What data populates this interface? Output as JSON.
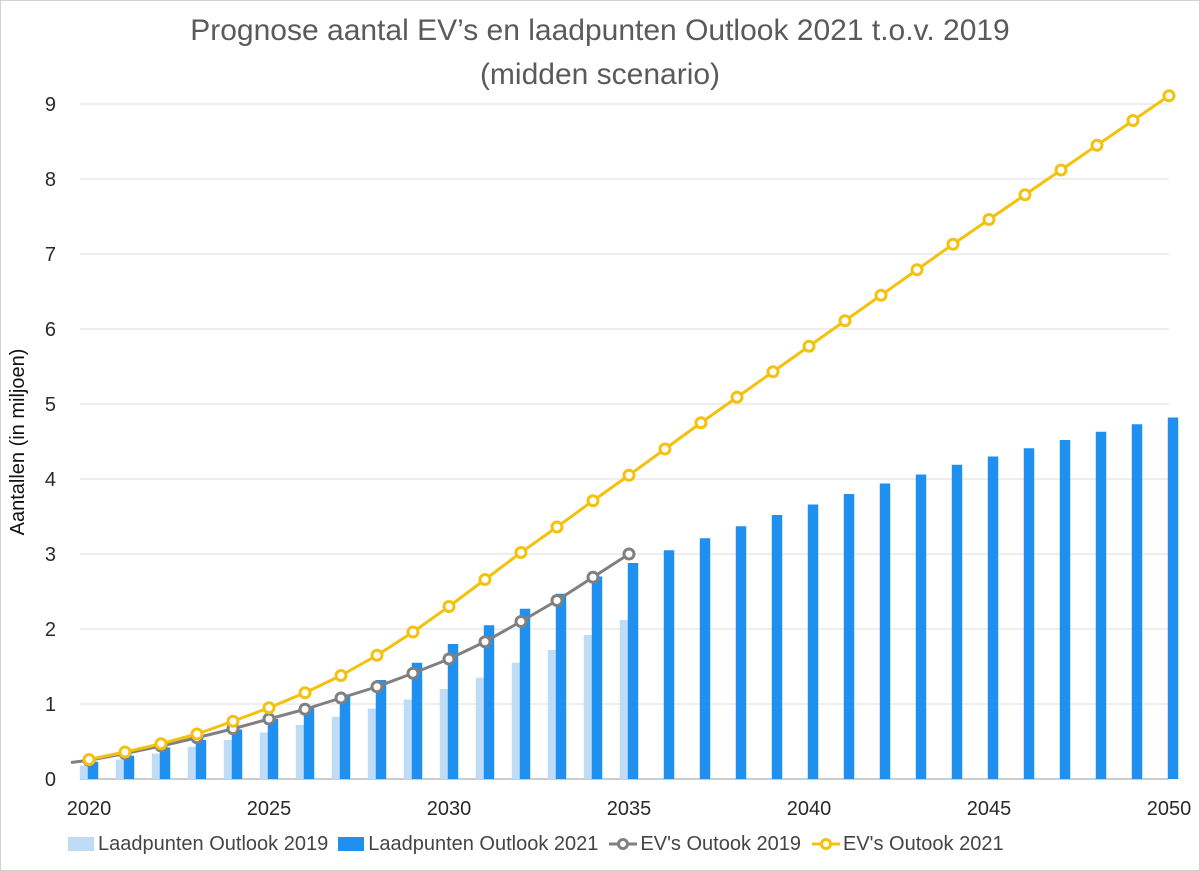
{
  "chart_data": {
    "type": "bar",
    "title": "Prognose aantal EV’s en laadpunten Outlook 2021 t.o.v. 2019",
    "subtitle": "(midden scenario)",
    "xlabel": "",
    "ylabel": "Aantallen (in miljoen)",
    "ylim": [
      0,
      9
    ],
    "yticks": [
      0,
      1,
      2,
      3,
      4,
      5,
      6,
      7,
      8,
      9
    ],
    "xticks": [
      2020,
      2025,
      2030,
      2035,
      2040,
      2045,
      2050
    ],
    "grid": true,
    "legend_position": "bottom",
    "categories": [
      2020,
      2021,
      2022,
      2023,
      2024,
      2025,
      2026,
      2027,
      2028,
      2029,
      2030,
      2031,
      2032,
      2033,
      2034,
      2035,
      2036,
      2037,
      2038,
      2039,
      2040,
      2041,
      2042,
      2043,
      2044,
      2045,
      2046,
      2047,
      2048,
      2049,
      2050
    ],
    "series": [
      {
        "name": "Laadpunten Outlook 2019",
        "kind": "bar",
        "color": "#bfdcf7",
        "x": [
          2020,
          2021,
          2022,
          2023,
          2024,
          2025,
          2026,
          2027,
          2028,
          2029,
          2030,
          2031,
          2032,
          2033,
          2034,
          2035
        ],
        "values": [
          0.18,
          0.26,
          0.34,
          0.43,
          0.52,
          0.62,
          0.72,
          0.83,
          0.94,
          1.06,
          1.2,
          1.35,
          1.55,
          1.72,
          1.92,
          2.12
        ]
      },
      {
        "name": "Laadpunten Outlook 2021",
        "kind": "bar",
        "color": "#1f8ff0",
        "x": [
          2020,
          2021,
          2022,
          2023,
          2024,
          2025,
          2026,
          2027,
          2028,
          2029,
          2030,
          2031,
          2032,
          2033,
          2034,
          2035,
          2036,
          2037,
          2038,
          2039,
          2040,
          2041,
          2042,
          2043,
          2044,
          2045,
          2046,
          2047,
          2048,
          2049,
          2050
        ],
        "values": [
          0.23,
          0.31,
          0.42,
          0.52,
          0.66,
          0.8,
          0.95,
          1.12,
          1.32,
          1.55,
          1.8,
          2.05,
          2.27,
          2.47,
          2.7,
          2.88,
          3.05,
          3.21,
          3.37,
          3.52,
          3.66,
          3.8,
          3.94,
          4.06,
          4.19,
          4.3,
          4.41,
          4.52,
          4.63,
          4.73,
          4.82
        ]
      },
      {
        "name": "EV's Outook 2019",
        "kind": "line",
        "color": "#808080",
        "start": {
          "x": 2019.5,
          "y": 0.22
        },
        "x": [
          2020,
          2021,
          2022,
          2023,
          2024,
          2025,
          2026,
          2027,
          2028,
          2029,
          2030,
          2031,
          2032,
          2033,
          2034,
          2035
        ],
        "values": [
          0.25,
          0.34,
          0.44,
          0.55,
          0.67,
          0.8,
          0.93,
          1.08,
          1.23,
          1.41,
          1.6,
          1.83,
          2.1,
          2.38,
          2.69,
          3.0
        ]
      },
      {
        "name": "EV's Outook 2021",
        "kind": "line",
        "color": "#f4c20d",
        "x": [
          2020,
          2021,
          2022,
          2023,
          2024,
          2025,
          2026,
          2027,
          2028,
          2029,
          2030,
          2031,
          2032,
          2033,
          2034,
          2035,
          2036,
          2037,
          2038,
          2039,
          2040,
          2041,
          2042,
          2043,
          2044,
          2045,
          2046,
          2047,
          2048,
          2049,
          2050
        ],
        "values": [
          0.26,
          0.36,
          0.47,
          0.6,
          0.77,
          0.95,
          1.15,
          1.38,
          1.65,
          1.96,
          2.3,
          2.66,
          3.02,
          3.36,
          3.71,
          4.05,
          4.4,
          4.75,
          5.09,
          5.43,
          5.77,
          6.11,
          6.45,
          6.79,
          7.13,
          7.46,
          7.79,
          8.12,
          8.45,
          8.78,
          9.11
        ]
      }
    ]
  }
}
